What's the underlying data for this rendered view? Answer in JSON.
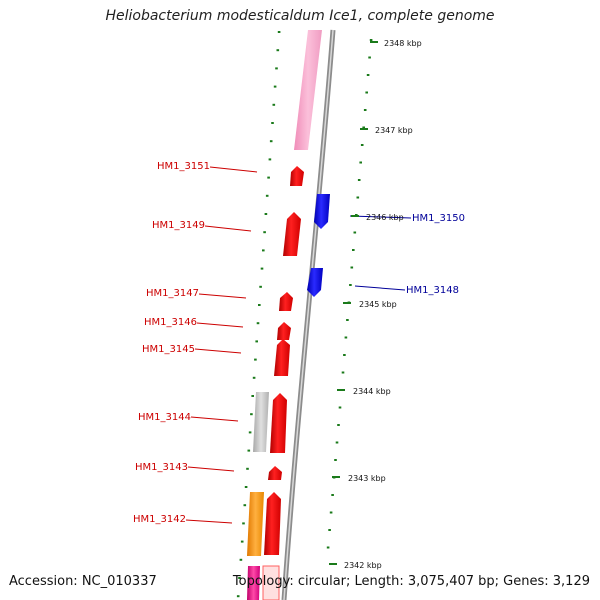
{
  "title": "Heliobacterium modesticaldum Ice1, complete genome",
  "accession": "Accession: NC_010337",
  "topology": "Topology: circular; Length: 3,075,407 bp; Genes: 3,129",
  "colors": {
    "forward_gene": "#ff0000",
    "reverse_gene": "#0000ff",
    "forward_label": "#cc0000",
    "reverse_label": "#000099",
    "tick": "#1a7a1a",
    "backbone": "#888888",
    "pink_feature": "#f7a8c8",
    "grey_feature": "#c8c8c8",
    "orange_feature": "#ff9900",
    "magenta_feature": "#e0007a"
  },
  "scale_labels": [
    {
      "label": "2348 kbp",
      "kbp": 2348
    },
    {
      "label": "2347 kbp",
      "kbp": 2347
    },
    {
      "label": "2346 kbp",
      "kbp": 2346
    },
    {
      "label": "2345 kbp",
      "kbp": 2345
    },
    {
      "label": "2344 kbp",
      "kbp": 2344
    },
    {
      "label": "2343 kbp",
      "kbp": 2343
    },
    {
      "label": "2342 kbp",
      "kbp": 2342
    }
  ],
  "forward_genes": [
    {
      "label": "HM1_3151"
    },
    {
      "label": "HM1_3149"
    },
    {
      "label": "HM1_3147"
    },
    {
      "label": "HM1_3146"
    },
    {
      "label": "HM1_3145"
    },
    {
      "label": "HM1_3144"
    },
    {
      "label": "HM1_3143"
    },
    {
      "label": "HM1_3142"
    }
  ],
  "reverse_genes": [
    {
      "label": "HM1_3150"
    },
    {
      "label": "HM1_3148"
    }
  ]
}
